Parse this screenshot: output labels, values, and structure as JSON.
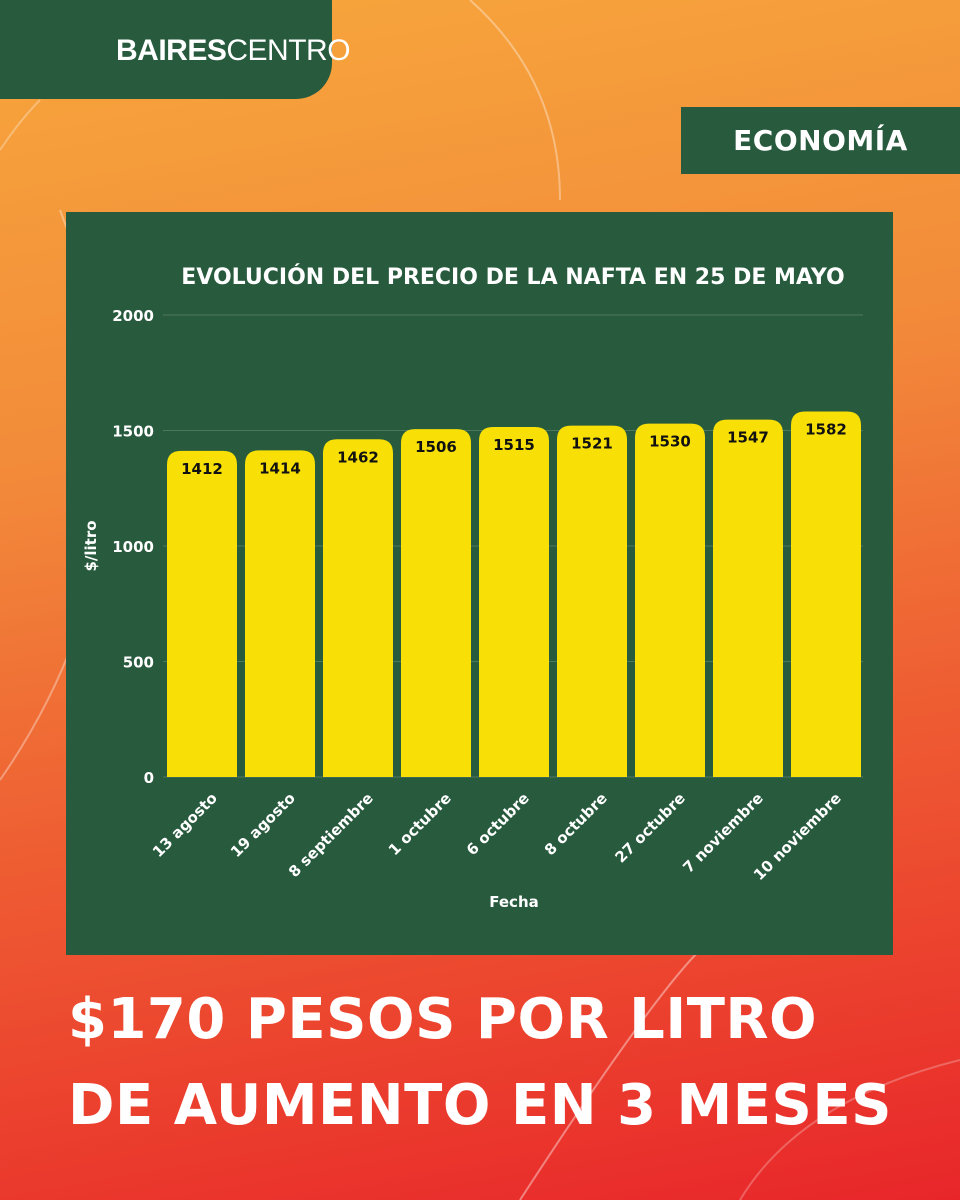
{
  "brand": {
    "logo_part1": "BAIRES",
    "logo_part2": "CENTRO",
    "colors": {
      "green": "#285a3e",
      "bar": "#f8e006",
      "white": "#ffffff"
    }
  },
  "section": {
    "label": "ECONOMÍA"
  },
  "chart_data": {
    "type": "bar",
    "title": "EVOLUCIÓN DEL PRECIO DE LA NAFTA EN 25 DE MAYO",
    "xlabel": "Fecha",
    "ylabel": "$/litro",
    "ylim": [
      0,
      2000
    ],
    "yticks": [
      0,
      500,
      1000,
      1500,
      2000
    ],
    "grid": true,
    "categories": [
      "13 agosto",
      "19 agosto",
      "8 septiembre",
      "1 octubre",
      "6 octubre",
      "8 octubre",
      "27 octubre",
      "7 noviembre",
      "10 noviembre"
    ],
    "values": [
      1412,
      1414,
      1462,
      1506,
      1515,
      1521,
      1530,
      1547,
      1582
    ]
  },
  "headline": {
    "line1": "$170 PESOS POR LITRO",
    "line2": "DE AUMENTO EN 3 MESES"
  }
}
